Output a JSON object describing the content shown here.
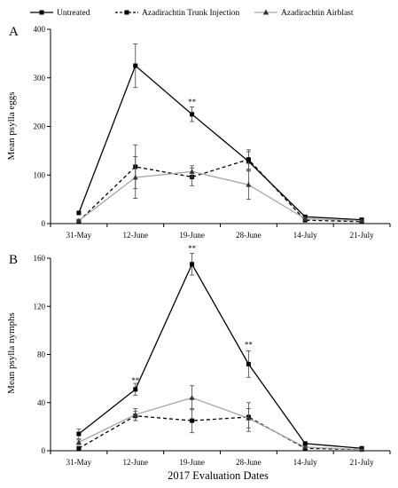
{
  "legend": [
    {
      "key": "untreated",
      "label": "Untreated"
    },
    {
      "key": "trunk",
      "label": "Azadirachtin Trunk Injection"
    },
    {
      "key": "airblast",
      "label": "Azadirachtin Airblast"
    }
  ],
  "xlabel": "2017 Evaluation Dates",
  "chart_data": [
    {
      "type": "line",
      "panel": "A",
      "ylabel": "Mean psylla eggs",
      "categories": [
        "31-May",
        "12-June",
        "19-June",
        "28-June",
        "14-July",
        "21-July"
      ],
      "ylim": [
        0,
        400
      ],
      "yticks": [
        "0",
        "100",
        "200",
        "300",
        "400"
      ],
      "series": [
        {
          "name": "Untreated",
          "style": "solid",
          "color": "#000000",
          "marker": "square",
          "values": [
            22,
            325,
            225,
            128,
            14,
            8
          ],
          "errors": [
            3,
            45,
            15,
            20,
            3,
            2
          ]
        },
        {
          "name": "Azadirachtin Trunk Injection",
          "style": "dashed",
          "color": "#000000",
          "marker": "square",
          "values": [
            5,
            117,
            96,
            132,
            7,
            4
          ],
          "errors": [
            2,
            45,
            18,
            20,
            2,
            1
          ]
        },
        {
          "name": "Azadirachtin Airblast",
          "style": "solid",
          "color": "#a6a6a6",
          "marker": "triangle",
          "values": [
            6,
            95,
            107,
            80,
            10,
            6
          ],
          "errors": [
            2,
            43,
            12,
            30,
            3,
            1
          ]
        }
      ],
      "annotations": [
        {
          "category": "19-June",
          "text": "**",
          "y": 245
        }
      ]
    },
    {
      "type": "line",
      "panel": "B",
      "ylabel": "Mean psylla nymphs",
      "categories": [
        "31-May",
        "12-June",
        "19-June",
        "28-June",
        "14-July",
        "21-July"
      ],
      "ylim": [
        0,
        160
      ],
      "yticks": [
        "0",
        "40",
        "80",
        "120",
        "160"
      ],
      "series": [
        {
          "name": "Untreated",
          "style": "solid",
          "color": "#000000",
          "marker": "square",
          "values": [
            14,
            51,
            155,
            72,
            6,
            2
          ],
          "errors": [
            4,
            5,
            9,
            11,
            1,
            0.5
          ]
        },
        {
          "name": "Azadirachtin Trunk Injection",
          "style": "dashed",
          "color": "#000000",
          "marker": "square",
          "values": [
            2,
            29,
            25,
            28,
            2,
            1
          ],
          "errors": [
            1,
            4,
            10,
            12,
            1,
            0.3
          ]
        },
        {
          "name": "Azadirachtin Airblast",
          "style": "solid",
          "color": "#a6a6a6",
          "marker": "triangle",
          "values": [
            7,
            30,
            44,
            27,
            3,
            1
          ],
          "errors": [
            2,
            5,
            10,
            8,
            1,
            0.3
          ]
        }
      ],
      "annotations": [
        {
          "category": "12-June",
          "text": "**",
          "y": 56
        },
        {
          "category": "19-June",
          "text": "**",
          "y": 166
        },
        {
          "category": "28-June",
          "text": "**",
          "y": 86
        }
      ]
    }
  ]
}
